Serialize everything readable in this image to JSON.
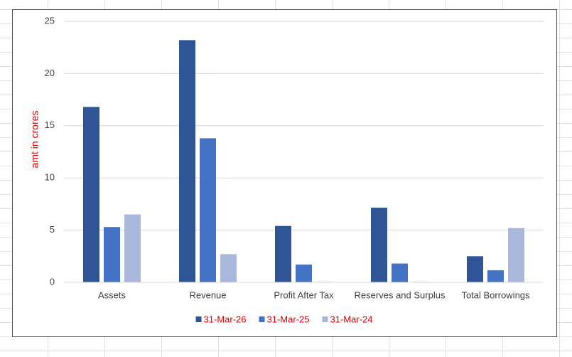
{
  "chart_data": {
    "type": "bar",
    "y_label": "amt in crores",
    "categories": [
      "Assets",
      "Revenue",
      "Profit After Tax",
      "Reserves and Surplus",
      "Total Borrowings"
    ],
    "series": [
      {
        "name": "31-Mar-26",
        "color": "#2f5597",
        "values": [
          16.8,
          23.2,
          5.4,
          7.15,
          2.5
        ]
      },
      {
        "name": "31-Mar-25",
        "color": "#4472c4",
        "values": [
          5.3,
          13.8,
          1.7,
          1.8,
          1.15
        ]
      },
      {
        "name": "31-Mar-24",
        "color": "#a9b7dc",
        "values": [
          6.5,
          2.7,
          0.05,
          0.05,
          5.2
        ]
      }
    ],
    "ylim": [
      0,
      25
    ],
    "yticks": [
      0,
      5,
      10,
      15,
      20,
      25
    ],
    "grid": true,
    "legend": "bottom"
  }
}
